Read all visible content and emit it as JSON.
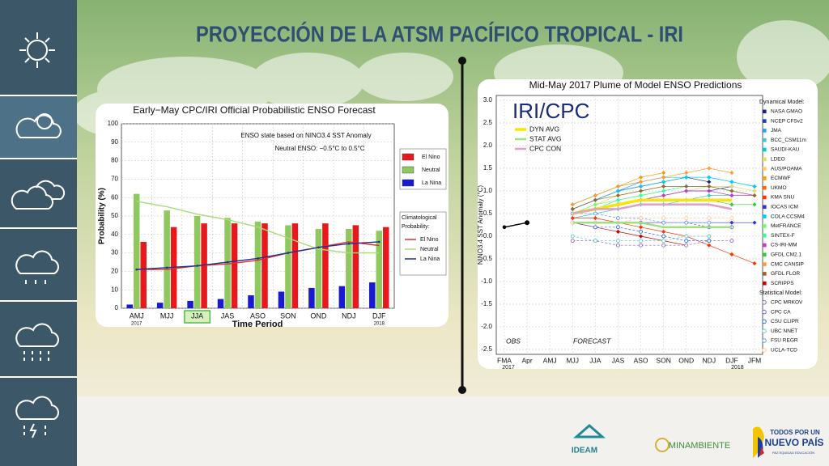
{
  "slide": {
    "title": "PROYECCIÓN DE LA ATSM PACÍFICO TROPICAL - IRI",
    "logos": {
      "ideam": "IDEAM",
      "minambiente": "MINAMBIENTE",
      "pais_top": "TODOS POR UN",
      "pais_main": "NUEVO PAÍS",
      "pais_sub": "PAZ EQUIDAD EDUCACIÓN"
    }
  },
  "chart_data": [
    {
      "type": "bar",
      "title": "Early−May CPC/IRI Official Probabilistic ENSO Forecast",
      "annotations": [
        "ENSO state based on NINO3.4 SST Anomaly",
        "Neutral ENSO: −0.5°C to 0.5°C"
      ],
      "x_label": "Time Period",
      "y_label": "Probability (%)",
      "categories": [
        "AMJ",
        "MJJ",
        "JJA",
        "JAS",
        "ASO",
        "SON",
        "OND",
        "NDJ",
        "DJF"
      ],
      "x_sublabels": [
        "2017",
        null,
        null,
        null,
        null,
        null,
        null,
        null,
        "2018"
      ],
      "series": [
        {
          "name": "El Nino",
          "color": "#e8191c",
          "values": [
            36,
            44,
            46,
            46,
            46,
            46,
            46,
            45,
            44
          ]
        },
        {
          "name": "Neutral",
          "color": "#90c860",
          "values": [
            62,
            53,
            50,
            49,
            47,
            45,
            43,
            43,
            42
          ]
        },
        {
          "name": "La Nina",
          "color": "#1a1ad0",
          "values": [
            2,
            3,
            4,
            5,
            7,
            9,
            11,
            12,
            14
          ]
        }
      ],
      "line_legend_title": "Climatological Probability:",
      "line_series": [
        {
          "name": "El Nino",
          "color": "#e03030",
          "values": [
            21,
            21,
            23,
            24,
            26,
            30,
            33,
            36,
            34
          ]
        },
        {
          "name": "Neutral",
          "color": "#a8dc78",
          "values": [
            58,
            55,
            51,
            48,
            44,
            38,
            32,
            30,
            30
          ]
        },
        {
          "name": "La Nina",
          "color": "#203090",
          "values": [
            21,
            22,
            23,
            25,
            27,
            30,
            33,
            35,
            36
          ]
        }
      ],
      "ylim": [
        0,
        100
      ],
      "yticks": [
        0,
        10,
        20,
        30,
        40,
        50,
        60,
        70,
        80,
        90,
        100
      ],
      "grid": true
    },
    {
      "type": "line",
      "title": "Mid-May 2017 Plume of Model ENSO Predictions",
      "y_label": "NINO3.4 SST Anomaly (°C)",
      "watermark": "IRI/CPC",
      "annotations": [
        "OBS",
        "FORECAST"
      ],
      "categories": [
        "FMA",
        "Apr",
        "AMJ",
        "MJJ",
        "JJA",
        "JAS",
        "ASO",
        "SON",
        "OND",
        "NDJ",
        "DJF",
        "JFM"
      ],
      "x_sublabels": [
        "2017",
        null,
        null,
        null,
        null,
        null,
        null,
        null,
        null,
        null,
        "2018",
        null
      ],
      "ylim": [
        -2.5,
        3
      ],
      "yticks": [
        -2.5,
        {
          "value": -2,
          "label": "-2.0"
        },
        -1.5,
        {
          "value": -1,
          "label": "-1.0"
        },
        -0.5,
        {
          "value": 0,
          "label": "0.0"
        },
        0.5,
        {
          "value": 1,
          "label": "1.0"
        },
        1.5,
        {
          "value": 2,
          "label": "2.0"
        },
        2.5,
        {
          "value": 3,
          "label": "3.0"
        }
      ],
      "grid": true,
      "observed": {
        "color": "#000000",
        "values": [
          0.2,
          0.3,
          null,
          null,
          null,
          null,
          null,
          null,
          null,
          null,
          null,
          null
        ]
      },
      "averages": [
        {
          "name": "DYN AVG",
          "color": "#f7e600",
          "values": [
            null,
            null,
            null,
            0.5,
            0.6,
            0.7,
            0.8,
            0.8,
            0.8,
            0.8,
            0.8,
            null
          ]
        },
        {
          "name": "STAT AVG",
          "color": "#a0e080",
          "values": [
            null,
            null,
            null,
            0.3,
            0.3,
            0.3,
            0.3,
            0.2,
            0.2,
            0.2,
            0.2,
            null
          ]
        },
        {
          "name": "CPC CON",
          "color": "#dda0c8",
          "values": [
            null,
            null,
            null,
            0.5,
            0.6,
            0.6,
            0.7,
            0.7,
            0.7,
            0.7,
            0.6,
            null
          ]
        }
      ],
      "groups": [
        {
          "title": "Dynamical Model:",
          "marker": "filled",
          "series": [
            {
              "name": "NASA GMAO",
              "color": "#1a237e",
              "values": [
                null,
                null,
                null,
                0.6,
                0.8,
                1.0,
                1.1,
                1.2,
                1.3,
                1.2,
                null,
                null
              ]
            },
            {
              "name": "NCEP CFSv2",
              "color": "#1f3fbf",
              "values": [
                null,
                null,
                null,
                0.5,
                0.6,
                0.7,
                0.8,
                0.9,
                1.0,
                1.0,
                1.1,
                null
              ]
            },
            {
              "name": "JMA",
              "color": "#3399ff",
              "values": [
                null,
                null,
                null,
                0.6,
                0.8,
                1.0,
                1.2,
                1.3,
                null,
                null,
                null,
                null
              ]
            },
            {
              "name": "BCC_CSM11m",
              "color": "#33cccc",
              "values": [
                null,
                null,
                null,
                0.4,
                0.5,
                0.6,
                0.7,
                0.7,
                0.8,
                0.9,
                0.9,
                null
              ]
            },
            {
              "name": "SAUDI-KAU",
              "color": "#00cccc",
              "values": [
                null,
                null,
                null,
                0.7,
                0.9,
                1.1,
                1.2,
                1.3,
                1.3,
                1.3,
                1.2,
                1.1
              ]
            },
            {
              "name": "LDEO",
              "color": "#dede60",
              "values": [
                null,
                null,
                null,
                0.5,
                0.6,
                0.7,
                0.8,
                0.9,
                1.0,
                1.1,
                1.1,
                1.0
              ]
            },
            {
              "name": "AUS/POAMA",
              "color": "#ffcc66",
              "values": [
                null,
                null,
                null,
                0.5,
                0.7,
                0.9,
                1.0,
                1.1,
                null,
                null,
                null,
                null
              ]
            },
            {
              "name": "ECMWF",
              "color": "#ff9900",
              "values": [
                null,
                null,
                null,
                0.7,
                0.9,
                1.1,
                1.3,
                1.4,
                null,
                null,
                null,
                null
              ]
            },
            {
              "name": "UKMO",
              "color": "#ff6600",
              "values": [
                null,
                null,
                null,
                0.6,
                0.8,
                1.0,
                1.1,
                null,
                null,
                null,
                null,
                null
              ]
            },
            {
              "name": "KMA SNU",
              "color": "#ff3300",
              "values": [
                null,
                null,
                null,
                0.4,
                0.4,
                0.3,
                0.2,
                0.1,
                0.0,
                -0.2,
                -0.4,
                -0.6
              ]
            },
            {
              "name": "IOCAS ICM",
              "color": "#3333cc",
              "values": [
                null,
                null,
                null,
                0.3,
                0.3,
                0.3,
                0.3,
                0.3,
                0.3,
                0.3,
                0.3,
                0.3
              ]
            },
            {
              "name": "COLA CCSM4",
              "color": "#00ccff",
              "values": [
                null,
                null,
                null,
                0.6,
                0.8,
                1.0,
                1.1,
                1.2,
                1.3,
                1.3,
                1.2,
                1.1
              ]
            },
            {
              "name": "MetFRANCE",
              "color": "#66ff66",
              "values": [
                null,
                null,
                null,
                0.5,
                0.7,
                0.8,
                0.9,
                1.0,
                null,
                null,
                null,
                null
              ]
            },
            {
              "name": "SINTEX-F",
              "color": "#33ff99",
              "values": [
                null,
                null,
                null,
                0.5,
                0.6,
                0.8,
                0.9,
                1.0,
                1.1,
                1.1,
                1.0,
                null
              ]
            },
            {
              "name": "CS-IRI-MM",
              "color": "#cc33cc",
              "values": [
                null,
                null,
                null,
                0.5,
                0.6,
                0.7,
                0.8,
                0.9,
                1.0,
                1.0,
                0.9,
                0.9
              ]
            },
            {
              "name": "GFDL CM2.1",
              "color": "#33cc33",
              "values": [
                null,
                null,
                null,
                0.5,
                0.6,
                0.7,
                0.8,
                0.8,
                0.8,
                0.8,
                0.7,
                0.7
              ]
            },
            {
              "name": "CMC CANSIP",
              "color": "#ff9933",
              "values": [
                null,
                null,
                null,
                0.7,
                0.9,
                1.1,
                1.2,
                1.3,
                1.4,
                1.5,
                1.4,
                null
              ]
            },
            {
              "name": "GFDL FLOR",
              "color": "#996633",
              "values": [
                null,
                null,
                null,
                0.6,
                0.8,
                0.9,
                1.0,
                1.1,
                1.1,
                1.1,
                1.0,
                0.9
              ]
            },
            {
              "name": "SCRIPPS",
              "color": "#cc0000",
              "values": [
                null,
                null,
                null,
                0.3,
                0.2,
                0.1,
                0.0,
                -0.1,
                -0.2,
                null,
                null,
                null
              ]
            }
          ]
        },
        {
          "title": "Statistical Model:",
          "marker": "hollow",
          "series": [
            {
              "name": "CPC MRKOV",
              "color": "#9966cc",
              "values": [
                null,
                null,
                null,
                -0.1,
                -0.1,
                -0.2,
                -0.2,
                -0.2,
                -0.2,
                -0.1,
                -0.1,
                null
              ]
            },
            {
              "name": "CPC CA",
              "color": "#6666cc",
              "values": [
                null,
                null,
                null,
                0.3,
                0.3,
                0.3,
                0.3,
                0.3,
                0.3,
                0.2,
                0.2,
                null
              ]
            },
            {
              "name": "CSU CLIPR",
              "color": "#3366ff",
              "values": [
                null,
                null,
                null,
                0.3,
                0.2,
                0.2,
                0.1,
                0.0,
                -0.1,
                -0.1,
                null,
                null
              ]
            },
            {
              "name": "UBC NNET",
              "color": "#66cccc",
              "values": [
                null,
                null,
                null,
                0.0,
                -0.1,
                -0.1,
                -0.1,
                -0.1,
                0.0,
                0.0,
                null,
                null
              ]
            },
            {
              "name": "FSU REGR",
              "color": "#6699ff",
              "values": [
                null,
                null,
                null,
                0.5,
                0.5,
                0.4,
                0.4,
                0.3,
                0.3,
                0.3,
                null,
                null
              ]
            },
            {
              "name": "UCLA-TCD",
              "color": "#ffcc99",
              "values": [
                null,
                null,
                null,
                0.3,
                0.3,
                0.3,
                0.4,
                0.4,
                0.4,
                0.4,
                0.4,
                null
              ]
            }
          ]
        }
      ]
    }
  ]
}
